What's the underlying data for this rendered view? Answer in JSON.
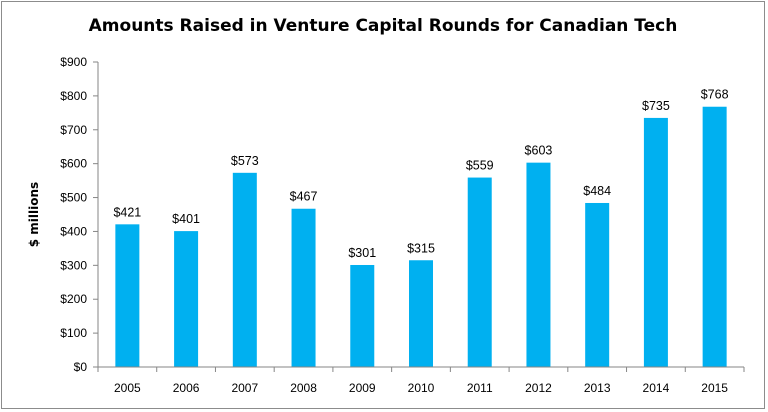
{
  "chart_data": {
    "type": "bar",
    "title": "Amounts Raised in Venture Capital Rounds for Canadian Tech",
    "xlabel": "",
    "ylabel": "$ millions",
    "categories": [
      "2005",
      "2006",
      "2007",
      "2008",
      "2009",
      "2010",
      "2011",
      "2012",
      "2013",
      "2014",
      "2015"
    ],
    "values": [
      421,
      401,
      573,
      467,
      301,
      315,
      559,
      603,
      484,
      735,
      768
    ],
    "data_labels": [
      "$421",
      "$401",
      "$573",
      "$467",
      "$301",
      "$315",
      "$559",
      "$603",
      "$484",
      "$735",
      "$768"
    ],
    "y_ticks": [
      0,
      100,
      200,
      300,
      400,
      500,
      600,
      700,
      800,
      900
    ],
    "y_tick_labels": [
      "$0",
      "$100",
      "$200",
      "$300",
      "$400",
      "$500",
      "$600",
      "$700",
      "$800",
      "$900"
    ],
    "ylim": [
      0,
      900
    ],
    "grid": false,
    "legend": "none",
    "colors": {
      "bar": "#00b0f0",
      "axis": "#868686"
    }
  }
}
